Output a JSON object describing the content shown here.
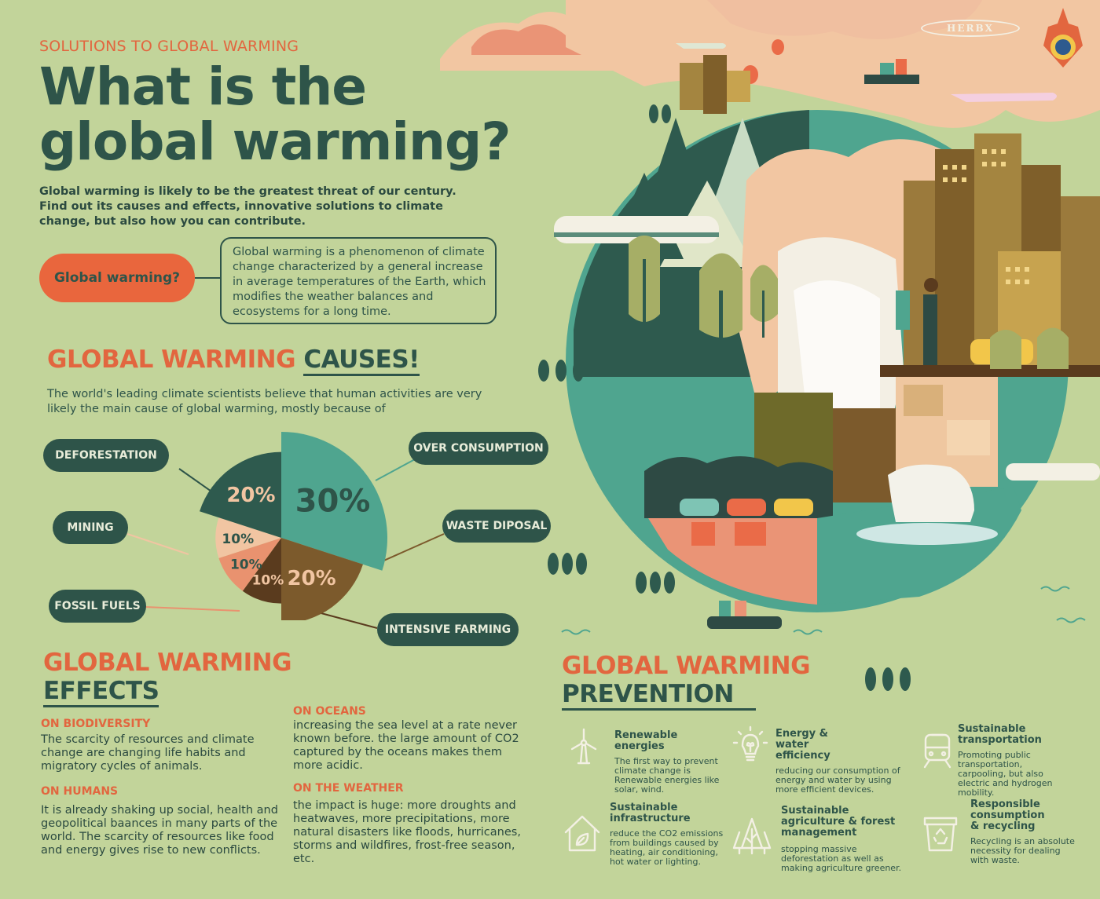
{
  "brand": {
    "logo_text": "HERBX"
  },
  "header": {
    "kicker": "SOLUTIONS TO GLOBAL WARMING",
    "title_line1": "What is the",
    "title_line2": "global warming?",
    "intro": "Global warming is likely to be the greatest threat of our century. Find out its causes and effects, innovative solutions to climate change, but also how you can contribute."
  },
  "definition": {
    "label": "Global warming?",
    "text": "Global warming is a phenomenon of climate change characterized by a general increase in average temperatures of the Earth, which modifies the weather balances and ecosystems for a long time."
  },
  "causes": {
    "heading_accent": "GLOBAL WARMING",
    "heading_main": "CAUSES!",
    "intro": "The world's leading climate scientists believe that human activities are very likely the main cause of global warming, mostly because of",
    "labels": {
      "deforestation": "DEFORESTATION",
      "over_consumption": "OVER CONSUMPTION",
      "mining": "MINING",
      "waste_disposal": "WASTE DIPOSAL",
      "fossil_fuels": "FOSSIL FUELS",
      "intensive_farming": "INTENSIVE FARMING"
    },
    "colors": {
      "deforestation": "#2e5a4e",
      "over_consumption": "#4fa58f",
      "mining": "#f1c5a2",
      "fossil_fuels": "#e9926f",
      "intensive_farming": "#5a3b1e",
      "waste_disposal": "#7c5a2c"
    }
  },
  "chart_data": {
    "type": "pie",
    "categories": [
      "Over consumption",
      "Waste disposal",
      "Intensive farming",
      "Fossil fuels",
      "Mining",
      "Deforestation"
    ],
    "values": [
      30,
      20,
      10,
      10,
      10,
      20
    ],
    "labels": [
      "30%",
      "20%",
      "10%",
      "10%",
      "10%",
      "20%"
    ],
    "colors": [
      "#4fa58f",
      "#7c5a2c",
      "#5a3b1e",
      "#e9926f",
      "#f1c5a2",
      "#2e5a4e"
    ]
  },
  "effects": {
    "heading_accent": "GLOBAL WARMING",
    "heading_main": "EFFECTS",
    "items": [
      {
        "head": "ON BIODIVERSITY",
        "body": "The scarcity of resources and climate change are changing life habits and migratory cycles of animals."
      },
      {
        "head": "ON HUMANS",
        "body": "It is already shaking up social, health and geopolitical baances in many parts of the world. The scarcity of resources like food and energy gives rise to new conflicts."
      },
      {
        "head": "ON OCEANS",
        "body": "increasing the sea level at a rate never known before. the large amount of CO2 captured by the oceans makes them more acidic."
      },
      {
        "head": "ON THE WEATHER",
        "body": "the impact is huge: more droughts and heatwaves, more precipitations, more natural disasters like floods, hurricanes, storms and wildfires, frost-free season, etc."
      }
    ]
  },
  "prevention": {
    "heading_accent": "GLOBAL WARMING",
    "heading_main": "PREVENTION",
    "items": [
      {
        "title": "Renewable energies",
        "body": "The first way to prevent climate change is Renewable energies like solar, wind.",
        "icon": "wind-turbine-icon"
      },
      {
        "title": "Energy & water efficiency",
        "body": "reducing our consumption of energy and water by using more efficient devices.",
        "icon": "lightbulb-leaf-icon"
      },
      {
        "title": "Sustainable transportation",
        "body": "Promoting public transportation, carpooling, but also electric and hydrogen mobility.",
        "icon": "train-icon"
      },
      {
        "title": "Sustainable infrastructure",
        "body": "reduce the CO2 emissions from buildings caused by heating, air conditioning, hot water or lighting.",
        "icon": "house-leaf-icon"
      },
      {
        "title": "Sustainable agriculture & forest management",
        "body": "stopping massive deforestation as well as making agriculture greener.",
        "icon": "forest-icon"
      },
      {
        "title": "Responsible consumption & recycling",
        "body": "Recycling is an absolute necessity for dealing with waste.",
        "icon": "recycle-bin-icon"
      }
    ]
  }
}
